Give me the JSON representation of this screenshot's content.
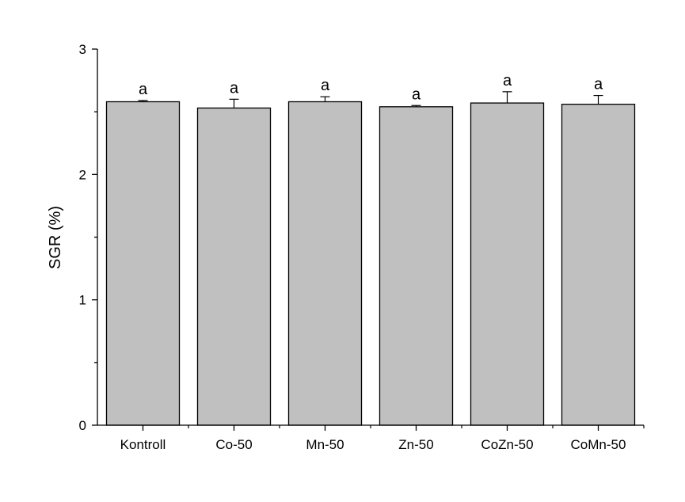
{
  "chart_data": {
    "type": "bar",
    "title": "",
    "xlabel": "",
    "ylabel": "SGR (%)",
    "ylim": [
      0,
      3
    ],
    "yticks": [
      "0",
      "1",
      "2",
      "3"
    ],
    "categories": [
      "Kontroll",
      "Co-50",
      "Mn-50",
      "Zn-50",
      "CoZn-50",
      "CoMn-50"
    ],
    "values": [
      2.58,
      2.53,
      2.58,
      2.54,
      2.57,
      2.56
    ],
    "errors": [
      0.01,
      0.07,
      0.04,
      0.01,
      0.09,
      0.07
    ],
    "significance_letters": [
      "a",
      "a",
      "a",
      "a",
      "a",
      "a"
    ],
    "bar_color": "#c0c0c0",
    "grid": false,
    "legend": "none"
  }
}
